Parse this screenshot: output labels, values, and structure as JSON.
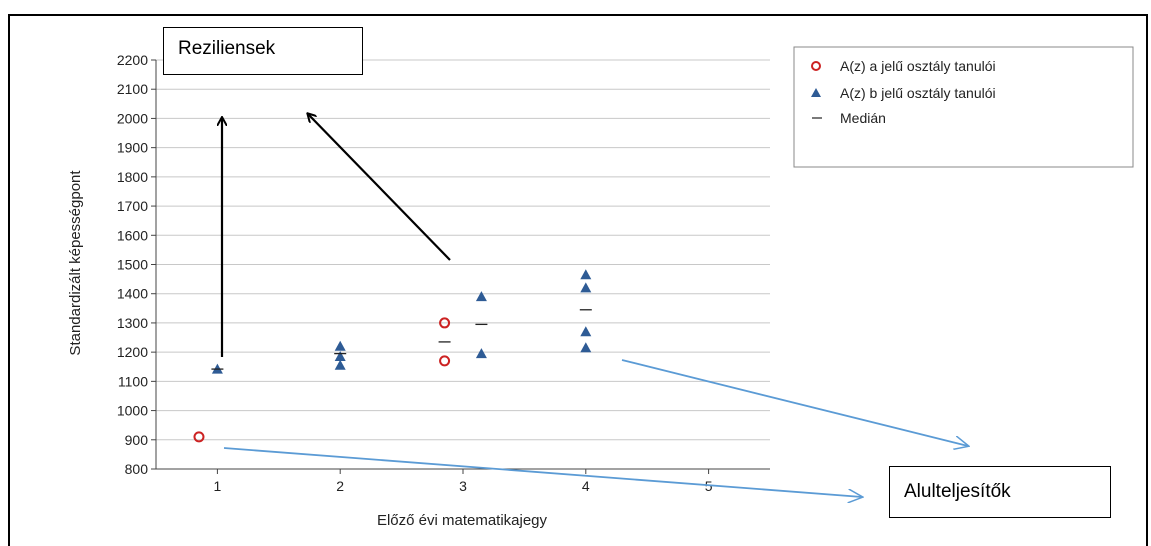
{
  "chart_data": {
    "type": "scatter",
    "xlabel": "Előző évi matematikajegy",
    "ylabel": "Standardizált képességpont",
    "xticks": [
      1,
      2,
      3,
      4,
      5
    ],
    "xlim": [
      0.5,
      5.5
    ],
    "ylim": [
      800,
      2200
    ],
    "yticks": [
      800,
      900,
      1000,
      1100,
      1200,
      1300,
      1400,
      1500,
      1600,
      1700,
      1800,
      1900,
      2000,
      2100,
      2200
    ],
    "grid": "horizontal",
    "legend_position": "top-right",
    "series": [
      {
        "name": "A(z) a jelű osztály tanulói",
        "marker": "circle",
        "color": "#cc2222",
        "points": [
          [
            0.85,
            910
          ],
          [
            2.85,
            1300
          ],
          [
            2.85,
            1170
          ]
        ]
      },
      {
        "name": "A(z) b jelű osztály tanulói",
        "marker": "triangle",
        "color": "#2e5b95",
        "points": [
          [
            1.0,
            1142
          ],
          [
            2.0,
            1220
          ],
          [
            2.0,
            1185
          ],
          [
            2.0,
            1155
          ],
          [
            3.15,
            1390
          ],
          [
            3.15,
            1195
          ],
          [
            4.0,
            1465
          ],
          [
            4.0,
            1420
          ],
          [
            4.0,
            1270
          ],
          [
            4.0,
            1215
          ]
        ]
      },
      {
        "name": "Medián",
        "marker": "dash",
        "color": "#222222",
        "points": [
          [
            1.0,
            1142
          ],
          [
            2.0,
            1195
          ],
          [
            2.85,
            1235
          ],
          [
            3.15,
            1295
          ],
          [
            4.0,
            1345
          ]
        ]
      }
    ]
  },
  "annotations": {
    "top_label": "Reziliensek",
    "bottom_label": "Alulteljesítők"
  },
  "colors": {
    "black_arrow": "#000000",
    "blue_arrow": "#5b9bd5",
    "grid": "#c8c8c8"
  }
}
